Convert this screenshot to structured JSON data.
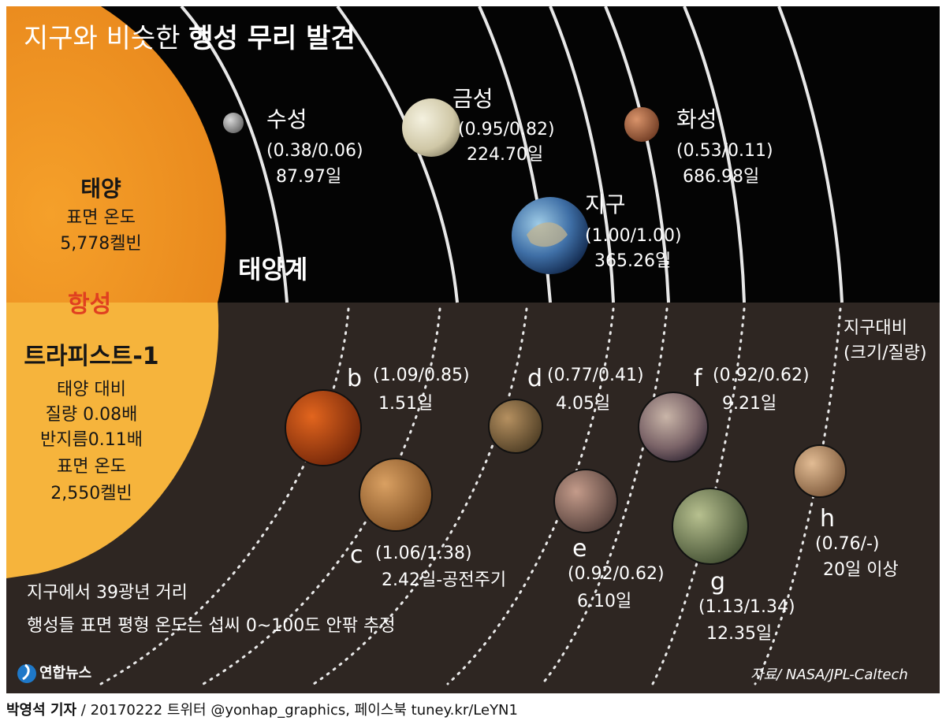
{
  "title": {
    "light": "지구와 비슷한 ",
    "bold": "행성 무리 발견"
  },
  "solar_system": {
    "label": "태양계",
    "sun": {
      "name": "태양",
      "line1": "표면 온도",
      "line2": "5,778켈빈"
    },
    "planets": [
      {
        "name": "수성",
        "ratio": "(0.38/0.06)",
        "period": "87.97일"
      },
      {
        "name": "금성",
        "ratio": "(0.95/0.82)",
        "period": "224.70일"
      },
      {
        "name": "지구",
        "ratio": "(1.00/1.00)",
        "period": "365.26일"
      },
      {
        "name": "화성",
        "ratio": "(0.53/0.11)",
        "period": "686.98일"
      }
    ]
  },
  "trappist": {
    "tag": "항성",
    "star": {
      "name": "트라피스트-1",
      "line1": "태양 대비",
      "line2": "질량 0.08배",
      "line3": "반지름0.11배",
      "line4": "표면 온도",
      "line5": "2,550켈빈"
    },
    "legend": {
      "line1": "지구대비",
      "line2": "(크기/질량)"
    },
    "planets": [
      {
        "letter": "b",
        "ratio": "(1.09/0.85)",
        "period": "1.51일"
      },
      {
        "letter": "c",
        "ratio": "(1.06/1.38)",
        "period": "2.42일-공전주기"
      },
      {
        "letter": "d",
        "ratio": "(0.77/0.41)",
        "period": "4.05일"
      },
      {
        "letter": "e",
        "ratio": "(0.92/0.62)",
        "period": "6.10일"
      },
      {
        "letter": "f",
        "ratio": "(0.92/0.62)",
        "period": "9.21일"
      },
      {
        "letter": "g",
        "ratio": "(1.13/1.34)",
        "period": "12.35일"
      },
      {
        "letter": "h",
        "ratio": "(0.76/-)",
        "period": "20일 이상"
      }
    ],
    "note": {
      "line1": "지구에서 39광년 거리",
      "line2": "행성들 표면 평형 온도는 섭씨 0~100도 안팎 추정"
    }
  },
  "logo": "연합뉴스",
  "source": "자료/ NASA/JPL-Caltech",
  "footer": {
    "reporter": "박영석 기자",
    "rest": " / 20170222   트위터 @yonhap_graphics, 페이스북 tuney.kr/LeYN1"
  }
}
